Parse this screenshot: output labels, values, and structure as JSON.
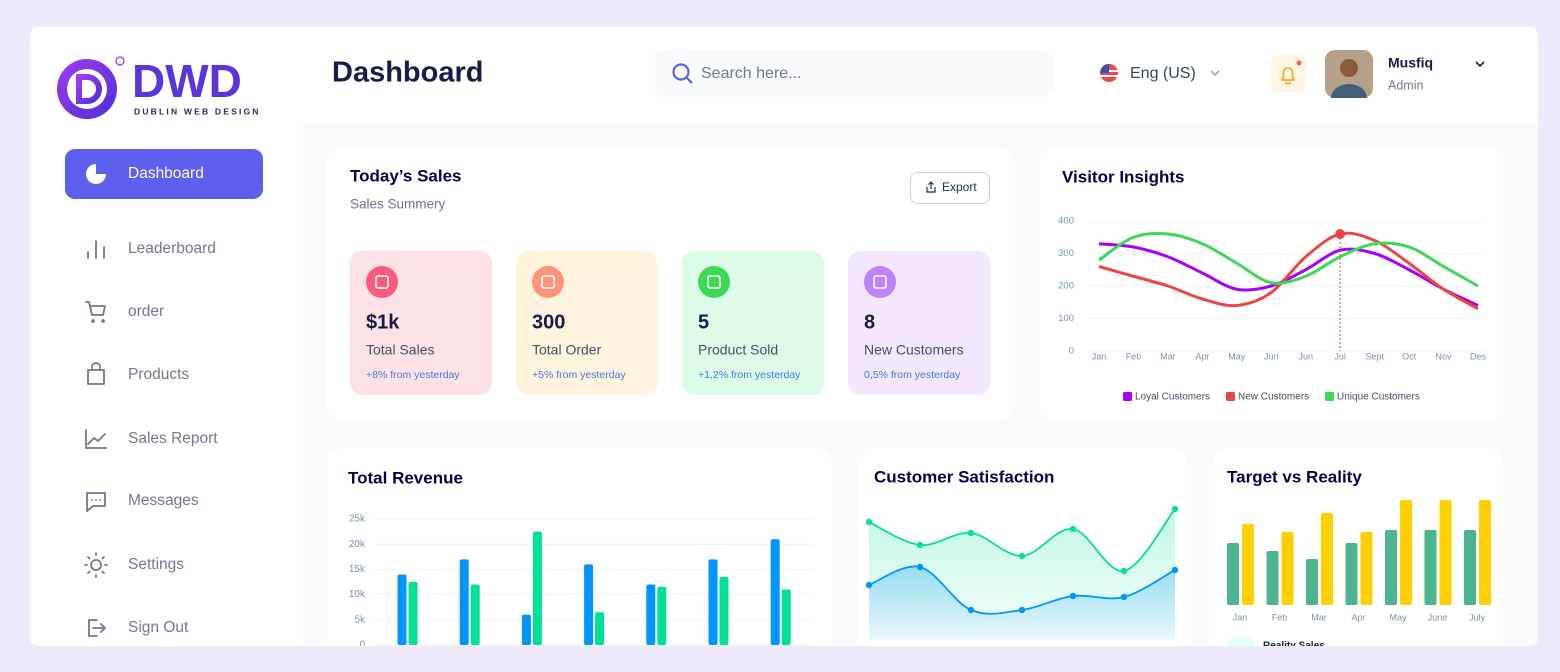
{
  "brand": {
    "name": "DWD",
    "tagline": "DUBLIN WEB DESIGN"
  },
  "header": {
    "title": "Dashboard",
    "search_placeholder": "Search here...",
    "language": "Eng (US)",
    "user_name": "Musfiq",
    "user_role": "Admin"
  },
  "nav": {
    "items": [
      "Dashboard",
      "Leaderboard",
      "order",
      "Products",
      "Sales Report",
      "Messages",
      "Settings",
      "Sign Out"
    ],
    "active": 0
  },
  "todays_sales": {
    "title": "Today’s Sales",
    "subtitle": "Sales Summery",
    "export": "Export",
    "cards": [
      {
        "value": "$1k",
        "label": "Total Sales",
        "change": "+8% from yesterday",
        "background": "#ffe2e5",
        "icon_color": "#fa5a7d"
      },
      {
        "value": "300",
        "label": "Total Order",
        "change": "+5% from yesterday",
        "background": "#fff4de",
        "icon_color": "#ff947a"
      },
      {
        "value": "5",
        "label": "Product Sold",
        "change": "+1,2% from yesterday",
        "background": "#dcfce7",
        "icon_color": "#3cd856"
      },
      {
        "value": "8",
        "label": "New Customers",
        "change": "0,5% from yesterday",
        "background": "#f3e8ff",
        "icon_color": "#bf83ff"
      }
    ]
  },
  "visitor_insights": {
    "title": "Visitor Insights",
    "type": "line",
    "categories": [
      "Jan",
      "Feb",
      "Mar",
      "Apr",
      "May",
      "Jun",
      "Jun",
      "Jul",
      "Sept",
      "Oct",
      "Nov",
      "Des"
    ],
    "ylim": [
      0,
      400
    ],
    "yticks": [
      0,
      100,
      200,
      300,
      400
    ],
    "grid": true,
    "series": [
      {
        "name": "Loyal Customers",
        "color": "#a700ff",
        "values": [
          330,
          320,
          290,
          240,
          190,
          200,
          250,
          310,
          300,
          250,
          190,
          140
        ]
      },
      {
        "name": "New Customers",
        "color": "#ef4444",
        "values": [
          260,
          230,
          200,
          160,
          140,
          180,
          290,
          360,
          340,
          270,
          190,
          130
        ]
      },
      {
        "name": "Unique Customers",
        "color": "#3cd856",
        "values": [
          280,
          350,
          360,
          330,
          270,
          210,
          230,
          290,
          330,
          320,
          260,
          200
        ]
      }
    ]
  },
  "total_revenue": {
    "title": "Total Revenue",
    "type": "bar",
    "ylim": [
      0,
      25000
    ],
    "yticks": [
      0,
      {
        "value": 5000,
        "label": "5k"
      },
      {
        "value": 10000,
        "label": "10k"
      },
      {
        "value": 15000,
        "label": "15k"
      },
      {
        "value": 20000,
        "label": "20k"
      },
      {
        "value": 25000,
        "label": "25k"
      }
    ],
    "grid": true,
    "series": [
      {
        "color": "#0095ff",
        "values": [
          14000,
          17000,
          6000,
          16000,
          12000,
          17000,
          21000
        ]
      },
      {
        "color": "#00e096",
        "values": [
          12500,
          12000,
          22500,
          6500,
          11500,
          13500,
          11000
        ]
      }
    ]
  },
  "customer_satisfaction": {
    "title": "Customer Satisfaction",
    "type": "area",
    "series": [
      {
        "color": "#07e098",
        "values": [
          128,
          105,
          117,
          94,
          121,
          79,
          141
        ]
      },
      {
        "color": "#0095ff",
        "values": [
          65,
          83,
          40,
          40,
          54,
          53,
          80
        ]
      }
    ]
  },
  "target_vs_reality": {
    "title": "Target vs Reality",
    "type": "bar",
    "categories": [
      "Jan",
      "Feb",
      "Mar",
      "Apr",
      "May",
      "June",
      "July"
    ],
    "series": [
      {
        "name": "Reality Sales",
        "color": "#4ab58e",
        "values": [
          62,
          54,
          46,
          62,
          75,
          75,
          75
        ]
      },
      {
        "color": "#ffcf00",
        "values": [
          81,
          73,
          92,
          73,
          105,
          105,
          105
        ]
      }
    ]
  }
}
